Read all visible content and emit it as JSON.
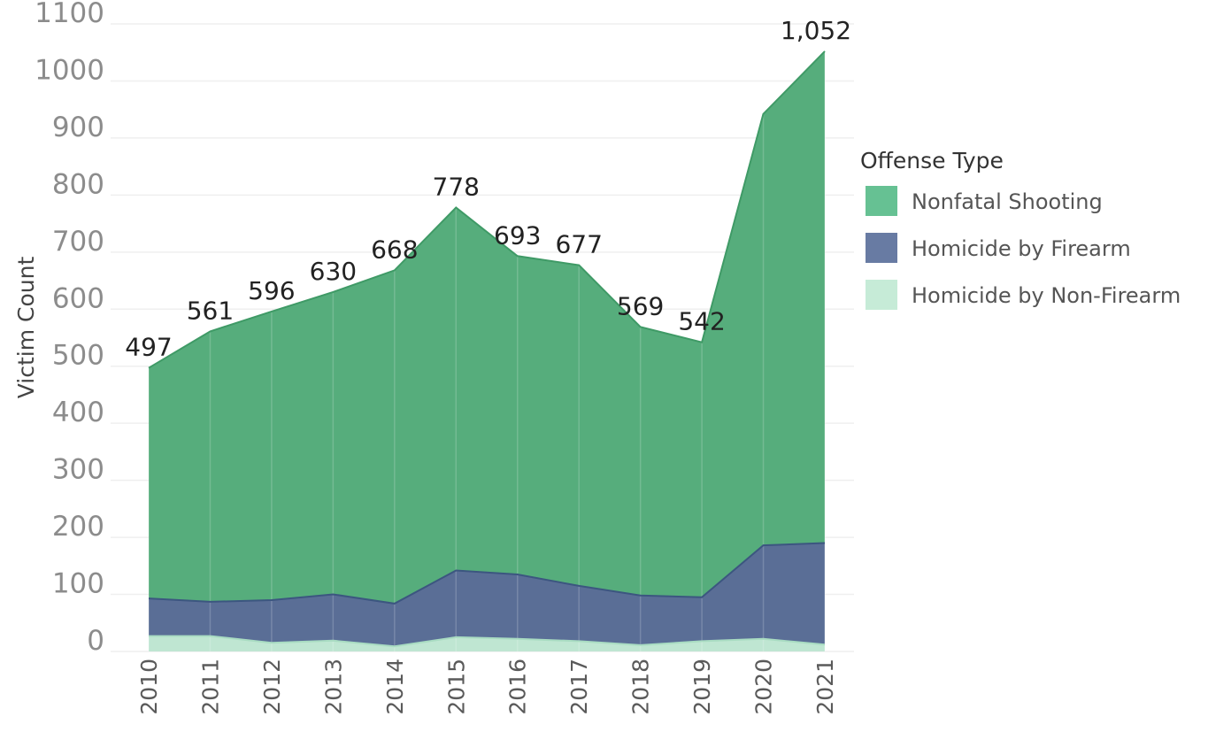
{
  "chart_data": {
    "type": "area",
    "stacked": true,
    "ylabel": "Victim Count",
    "xlabel": "",
    "ylim": [
      0,
      1100
    ],
    "yticks": [
      0,
      100,
      200,
      300,
      400,
      500,
      600,
      700,
      800,
      900,
      1000,
      1100
    ],
    "x": [
      "2010",
      "2011",
      "2012",
      "2013",
      "2014",
      "2015",
      "2016",
      "2017",
      "2018",
      "2019",
      "2020",
      "2021"
    ],
    "series": [
      {
        "name": "Homicide by Non-Firearm",
        "color": "#bfe6d2",
        "values": [
          27,
          27,
          15,
          19,
          9,
          25,
          22,
          18,
          11,
          18,
          22,
          12
        ]
      },
      {
        "name": "Homicide by Firearm",
        "color": "#5a6e96",
        "values": [
          66,
          60,
          75,
          81,
          75,
          117,
          113,
          97,
          87,
          77,
          164,
          178
        ]
      },
      {
        "name": "Nonfatal Shooting",
        "color": "#56ad7c",
        "values": [
          404,
          474,
          506,
          530,
          584,
          636,
          558,
          562,
          471,
          447,
          756,
          862
        ]
      }
    ],
    "totals": [
      497,
      561,
      596,
      630,
      668,
      778,
      693,
      677,
      569,
      542,
      942,
      1052
    ],
    "total_labels": [
      "497",
      "561",
      "596",
      "630",
      "668",
      "778",
      "693",
      "677",
      "569",
      "542",
      "",
      "1,052"
    ],
    "grid": true,
    "legend": {
      "title": "Offense Type",
      "placement": "right",
      "items": [
        {
          "name": "Nonfatal Shooting",
          "color": "#66c193"
        },
        {
          "name": "Homicide by Firearm",
          "color": "#687ba3"
        },
        {
          "name": "Homicide by Non-Firearm",
          "color": "#c6ebd7"
        }
      ]
    }
  }
}
